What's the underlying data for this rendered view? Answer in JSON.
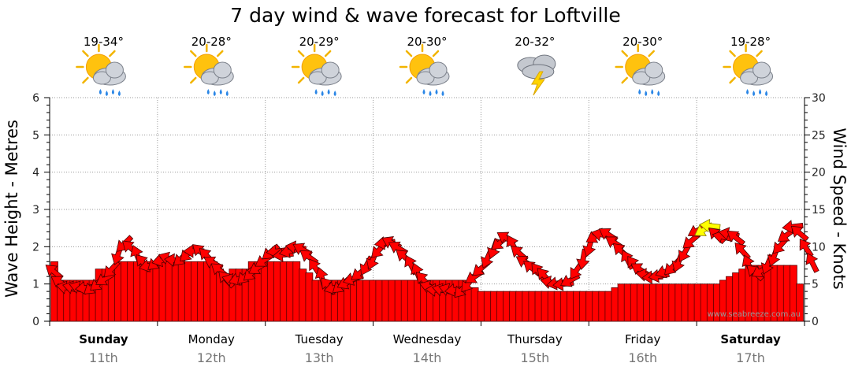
{
  "chart_data": {
    "type": "bar",
    "title": "7 day wind & wave forecast for Loftville",
    "ylabel_left": "Wave Height - Metres",
    "ylabel_right": "Wind Speed - Knots",
    "left_ylim": [
      0,
      6
    ],
    "right_ylim": [
      0,
      30
    ],
    "left_ticks": [
      "0",
      "1",
      "2",
      "3",
      "4",
      "5",
      "6"
    ],
    "right_ticks": [
      "0",
      "5",
      "10",
      "15",
      "20",
      "25",
      "30"
    ],
    "days": [
      {
        "day": "Sunday",
        "date": "11th",
        "temp": "19-34°",
        "weather": "partly-cloudy-rain-icon",
        "bold": true
      },
      {
        "day": "Monday",
        "date": "12th",
        "temp": "20-28°",
        "weather": "partly-cloudy-rain-icon",
        "bold": false
      },
      {
        "day": "Tuesday",
        "date": "13th",
        "temp": "20-29°",
        "weather": "partly-cloudy-rain-icon",
        "bold": false
      },
      {
        "day": "Wednesday",
        "date": "14th",
        "temp": "20-30°",
        "weather": "partly-cloudy-rain-icon",
        "bold": false
      },
      {
        "day": "Thursday",
        "date": "15th",
        "temp": "20-32°",
        "weather": "storm-icon",
        "bold": false
      },
      {
        "day": "Friday",
        "date": "16th",
        "temp": "20-30°",
        "weather": "partly-cloudy-rain-icon",
        "bold": false
      },
      {
        "day": "Saturday",
        "date": "17th",
        "temp": "19-28°",
        "weather": "partly-cloudy-rain-icon",
        "bold": true
      }
    ],
    "wave_heights_m": [
      1.6,
      1.1,
      1.1,
      1.1,
      1.1,
      1.1,
      1.1,
      1.4,
      1.4,
      1.4,
      1.6,
      1.6,
      1.6,
      1.6,
      1.6,
      1.6,
      1.6,
      1.6,
      1.6,
      1.6,
      1.6,
      1.6,
      1.6,
      1.6,
      1.6,
      1.6,
      1.4,
      1.1,
      1.4,
      1.4,
      1.4,
      1.6,
      1.6,
      1.6,
      1.6,
      1.6,
      1.6,
      1.6,
      1.6,
      1.4,
      1.3,
      1.1,
      1.1,
      1.1,
      1.1,
      1.1,
      1.1,
      1.1,
      1.1,
      1.1,
      1.1,
      1.1,
      1.1,
      1.1,
      1.1,
      1.1,
      1.1,
      1.1,
      1.1,
      1.1,
      1.1,
      1.1,
      1.1,
      1.1,
      1.1,
      0.9,
      0.9,
      0.8,
      0.8,
      0.8,
      0.8,
      0.8,
      0.8,
      0.8,
      0.8,
      0.8,
      0.8,
      0.8,
      0.8,
      0.8,
      0.8,
      0.8,
      0.8,
      0.8,
      0.8,
      0.8,
      0.8,
      0.8,
      0.9,
      1.0,
      1.0,
      1.0,
      1.0,
      1.0,
      1.0,
      1.0,
      1.0,
      1.0,
      1.0,
      1.0,
      1.0,
      1.0,
      1.0,
      1.0,
      1.0,
      1.1,
      1.2,
      1.3,
      1.4,
      1.5,
      1.5,
      1.5,
      1.5,
      1.5,
      1.5,
      1.5,
      1.5,
      1.0
    ],
    "wind_speed_knots": [
      6.6,
      5.2,
      4.5,
      4.5,
      4.5,
      4.5,
      4.6,
      5.1,
      5.7,
      7,
      9,
      10.4,
      9.8,
      8.8,
      7.8,
      7.5,
      7.9,
      8.2,
      8.4,
      8.2,
      8.5,
      9.1,
      9.4,
      9.3,
      8.7,
      7.8,
      6.8,
      5.6,
      5.5,
      5.7,
      6.1,
      6.5,
      7.2,
      8.2,
      9.3,
      9.4,
      8.9,
      9.4,
      9.9,
      9.6,
      8.6,
      7.1,
      5.8,
      4.7,
      4.5,
      4.8,
      5.2,
      5.7,
      6.5,
      7.5,
      8.3,
      9.6,
      10.5,
      10.5,
      9.8,
      8.6,
      7.5,
      6.4,
      5.5,
      4.6,
      4.2,
      4.2,
      4.2,
      4.2,
      4.3,
      5.1,
      6,
      7.1,
      8.5,
      9.8,
      10.6,
      11.1,
      10.2,
      9.1,
      7.9,
      7.1,
      6.6,
      6,
      5.2,
      5.1,
      5,
      5.5,
      6.9,
      8.4,
      10.1,
      11.4,
      11.6,
      11.6,
      10.5,
      9.4,
      8.2,
      7.5,
      6.9,
      6.2,
      5.9,
      6.1,
      6.7,
      7.3,
      8,
      9.3,
      10.8,
      12.2,
      12.3,
      12.8,
      11.5,
      11.3,
      11.7,
      11.2,
      9.4,
      7.5,
      6.5,
      6.8,
      7.7,
      8.8,
      10.2,
      11.6,
      12.7,
      11.8,
      9.8,
      7.8
    ]
  },
  "footer": {
    "credit": "www.seabreeze.com.au"
  },
  "colors": {
    "wave_bar": "#ff0000",
    "wind_arrow": "#ff0000",
    "wind_arrow_peak": "#ffff00",
    "grid": "#9a9a9a"
  }
}
